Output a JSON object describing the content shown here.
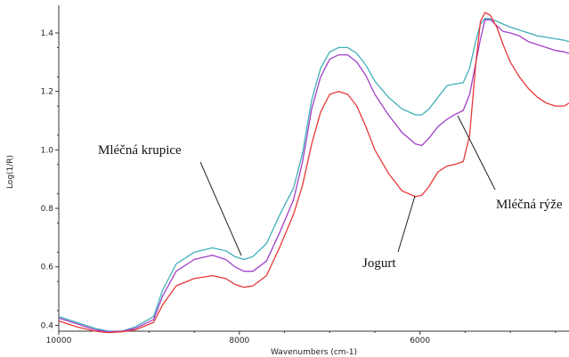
{
  "chart_data": {
    "type": "line",
    "title": "",
    "xlabel": "Wavenumbers (cm-1)",
    "ylabel": "Log(1/R)",
    "xlim": [
      10000,
      4350
    ],
    "ylim": [
      0.38,
      1.47
    ],
    "x_reversed": true,
    "grid": false,
    "x_ticks": [
      10000,
      8000,
      6000
    ],
    "x_tick_labels": [
      "10000",
      "8000",
      "6000"
    ],
    "y_ticks": [
      0.4,
      0.6,
      0.8,
      1.0,
      1.2,
      1.4
    ],
    "y_tick_labels": [
      "0.4",
      "0.6",
      "0.8",
      "1.0",
      "1.2",
      "1.4"
    ],
    "series": [
      {
        "color": "#40b0b8",
        "x": [
          10000,
          9800,
          9600,
          9450,
          9300,
          9150,
          8950,
          8850,
          8700,
          8500,
          8300,
          8150,
          8050,
          7950,
          7850,
          7700,
          7550,
          7400,
          7300,
          7200,
          7100,
          7000,
          6900,
          6800,
          6700,
          6600,
          6500,
          6350,
          6200,
          6050,
          5980,
          5900,
          5800,
          5700,
          5620,
          5520,
          5450,
          5380,
          5330,
          5280,
          5220,
          5150,
          5080,
          5000,
          4900,
          4800,
          4700,
          4600,
          4500,
          4400,
          4350
        ],
        "y": [
          0.43,
          0.41,
          0.39,
          0.38,
          0.38,
          0.395,
          0.43,
          0.52,
          0.61,
          0.65,
          0.665,
          0.655,
          0.635,
          0.625,
          0.635,
          0.68,
          0.78,
          0.87,
          0.99,
          1.17,
          1.28,
          1.335,
          1.35,
          1.35,
          1.33,
          1.29,
          1.235,
          1.18,
          1.14,
          1.12,
          1.12,
          1.14,
          1.18,
          1.22,
          1.225,
          1.23,
          1.28,
          1.375,
          1.43,
          1.45,
          1.448,
          1.44,
          1.43,
          1.42,
          1.41,
          1.4,
          1.39,
          1.385,
          1.38,
          1.375,
          1.37
        ]
      },
      {
        "color": "#a040c8",
        "x": [
          10000,
          9800,
          9600,
          9450,
          9300,
          9150,
          8950,
          8850,
          8700,
          8500,
          8300,
          8150,
          8050,
          7950,
          7850,
          7700,
          7550,
          7400,
          7300,
          7200,
          7100,
          7000,
          6900,
          6800,
          6700,
          6600,
          6500,
          6350,
          6200,
          6050,
          5980,
          5900,
          5800,
          5700,
          5620,
          5520,
          5450,
          5380,
          5330,
          5280,
          5220,
          5150,
          5080,
          5000,
          4900,
          4800,
          4700,
          4600,
          4500,
          4400,
          4350
        ],
        "y": [
          0.425,
          0.405,
          0.385,
          0.378,
          0.38,
          0.39,
          0.42,
          0.5,
          0.585,
          0.625,
          0.64,
          0.625,
          0.6,
          0.585,
          0.585,
          0.62,
          0.72,
          0.83,
          0.96,
          1.14,
          1.25,
          1.31,
          1.325,
          1.325,
          1.3,
          1.255,
          1.19,
          1.12,
          1.06,
          1.02,
          1.015,
          1.04,
          1.08,
          1.105,
          1.12,
          1.135,
          1.19,
          1.3,
          1.38,
          1.445,
          1.445,
          1.425,
          1.405,
          1.4,
          1.39,
          1.37,
          1.36,
          1.35,
          1.34,
          1.335,
          1.33
        ]
      },
      {
        "color": "#e83838",
        "x": [
          10000,
          9800,
          9600,
          9450,
          9300,
          9150,
          8950,
          8850,
          8700,
          8500,
          8300,
          8150,
          8050,
          7950,
          7850,
          7700,
          7550,
          7400,
          7300,
          7200,
          7100,
          7000,
          6900,
          6800,
          6700,
          6600,
          6500,
          6350,
          6200,
          6050,
          5980,
          5900,
          5800,
          5700,
          5620,
          5520,
          5450,
          5380,
          5330,
          5280,
          5220,
          5150,
          5080,
          5000,
          4900,
          4800,
          4700,
          4600,
          4500,
          4400,
          4350
        ],
        "y": [
          0.415,
          0.395,
          0.38,
          0.375,
          0.378,
          0.385,
          0.41,
          0.47,
          0.535,
          0.56,
          0.57,
          0.56,
          0.54,
          0.53,
          0.535,
          0.57,
          0.67,
          0.78,
          0.88,
          1.02,
          1.13,
          1.19,
          1.2,
          1.19,
          1.15,
          1.08,
          1.0,
          0.92,
          0.86,
          0.84,
          0.845,
          0.875,
          0.925,
          0.945,
          0.95,
          0.96,
          1.05,
          1.3,
          1.44,
          1.47,
          1.46,
          1.42,
          1.36,
          1.3,
          1.25,
          1.21,
          1.18,
          1.16,
          1.15,
          1.15,
          1.16
        ]
      }
    ],
    "annotations": [
      {
        "text": "Mléčná krupice",
        "target_series": 0
      },
      {
        "text": "Mléčná rýže",
        "target_series": 1
      },
      {
        "text": "Jogurt",
        "target_series": 2
      }
    ]
  }
}
